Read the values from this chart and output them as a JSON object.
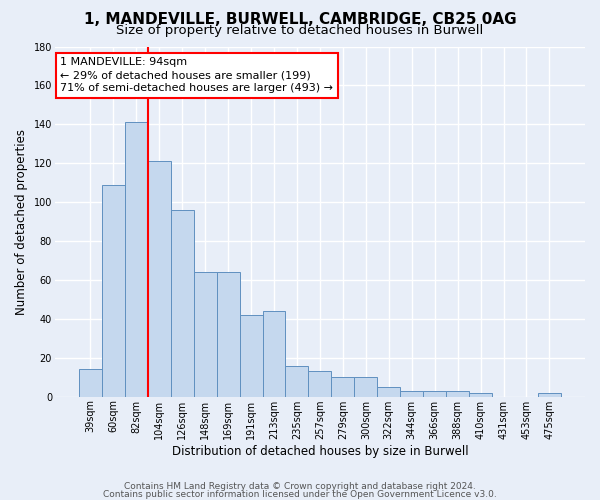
{
  "title": "1, MANDEVILLE, BURWELL, CAMBRIDGE, CB25 0AG",
  "subtitle": "Size of property relative to detached houses in Burwell",
  "xlabel": "Distribution of detached houses by size in Burwell",
  "ylabel": "Number of detached properties",
  "footnote1": "Contains HM Land Registry data © Crown copyright and database right 2024.",
  "footnote2": "Contains public sector information licensed under the Open Government Licence v3.0.",
  "categories": [
    "39sqm",
    "60sqm",
    "82sqm",
    "104sqm",
    "126sqm",
    "148sqm",
    "169sqm",
    "191sqm",
    "213sqm",
    "235sqm",
    "257sqm",
    "279sqm",
    "300sqm",
    "322sqm",
    "344sqm",
    "366sqm",
    "388sqm",
    "410sqm",
    "431sqm",
    "453sqm",
    "475sqm"
  ],
  "values": [
    14,
    109,
    141,
    121,
    96,
    64,
    64,
    42,
    44,
    16,
    13,
    10,
    10,
    5,
    3,
    3,
    3,
    2,
    0,
    0,
    2
  ],
  "bar_color": "#c5d8ee",
  "bar_edge_color": "#6090c0",
  "ylim": [
    0,
    180
  ],
  "yticks": [
    0,
    20,
    40,
    60,
    80,
    100,
    120,
    140,
    160,
    180
  ],
  "vline_position": 2.5,
  "vline_color": "red",
  "annotation_line1": "1 MANDEVILLE: 94sqm",
  "annotation_line2": "← 29% of detached houses are smaller (199)",
  "annotation_line3": "71% of semi-detached houses are larger (493) →",
  "background_color": "#e8eef8",
  "grid_color": "#ffffff",
  "title_fontsize": 11,
  "subtitle_fontsize": 9.5,
  "ylabel_fontsize": 8.5,
  "xlabel_fontsize": 8.5,
  "tick_fontsize": 7,
  "annotation_fontsize": 8,
  "footnote_fontsize": 6.5
}
